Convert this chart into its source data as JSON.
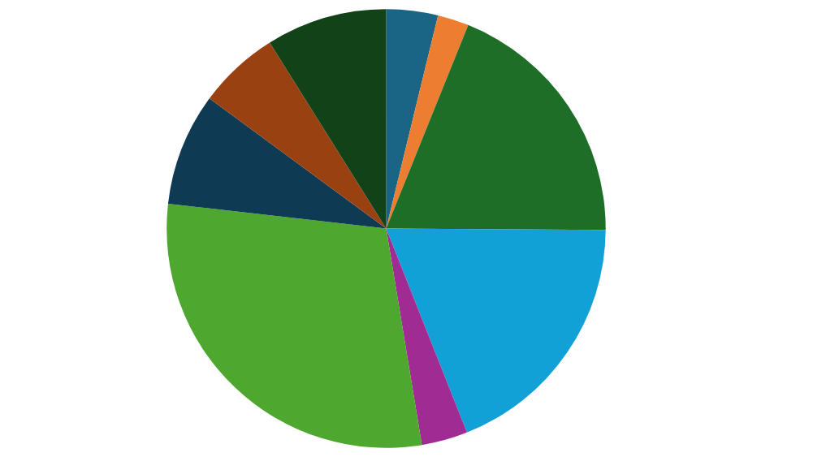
{
  "chart_data": {
    "type": "pie",
    "categories": [
      null,
      null,
      null,
      null,
      null,
      null,
      null,
      null,
      null
    ],
    "values": [
      3.8,
      2.3,
      19.0,
      18.9,
      3.4,
      29.4,
      8.3,
      6.0,
      8.9
    ],
    "colors": [
      "#1a6585",
      "#ed7d31",
      "#1e6e28",
      "#12a1d6",
      "#a02b93",
      "#4ea72e",
      "#0e3b53",
      "#9a4112",
      "#124218"
    ],
    "legend": false
  }
}
